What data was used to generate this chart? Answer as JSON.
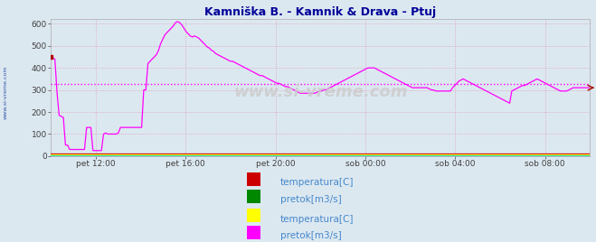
{
  "title": "Kamniška B. - Kamnik & Drava - Ptuj",
  "title_color": "#000099",
  "bg_color": "#dce8f0",
  "legend_bg_color": "#e8eef4",
  "ylim": [
    0,
    620
  ],
  "yticks": [
    0,
    100,
    200,
    300,
    400,
    500,
    600
  ],
  "grid_color": "#dd99bb",
  "avg_line_y": 325,
  "avg_line_color": "#ff00ff",
  "xtick_labels": [
    "pet 12:00",
    "pet 16:00",
    "pet 20:00",
    "sob 00:00",
    "sob 04:00",
    "sob 08:00"
  ],
  "xtick_fracs": [
    0.0833,
    0.25,
    0.4167,
    0.5833,
    0.75,
    0.9167
  ],
  "watermark": "www.si-vreme.com",
  "legend1_colors": [
    "#cc0000",
    "#008800"
  ],
  "legend1_labels": [
    "temperatura[C]",
    "pretok[m3/s]"
  ],
  "legend2_colors": [
    "#ffff00",
    "#ff00ff"
  ],
  "legend2_labels": [
    "temperatura[C]",
    "pretok[m3/s]"
  ],
  "legend_text_color": "#4488cc",
  "side_label": "www.si-vreme.com",
  "side_label_color": "#3355aa",
  "kamnik_temp_val": 12,
  "kamnik_flow_val": 5,
  "ptuj_temp_val": 8,
  "cyan_val": 3,
  "ptuj_flow": [
    450,
    445,
    440,
    290,
    185,
    180,
    175,
    50,
    50,
    30,
    30,
    30,
    30,
    30,
    30,
    30,
    30,
    130,
    130,
    130,
    25,
    25,
    25,
    25,
    25,
    100,
    105,
    100,
    100,
    100,
    100,
    100,
    105,
    130,
    130,
    130,
    130,
    130,
    130,
    130,
    130,
    130,
    130,
    130,
    300,
    300,
    420,
    430,
    440,
    450,
    460,
    480,
    510,
    530,
    550,
    560,
    570,
    580,
    590,
    605,
    610,
    605,
    595,
    580,
    565,
    555,
    545,
    540,
    545,
    540,
    535,
    525,
    515,
    505,
    495,
    490,
    480,
    475,
    465,
    460,
    455,
    450,
    445,
    440,
    435,
    430,
    430,
    425,
    420,
    415,
    410,
    405,
    400,
    395,
    390,
    385,
    380,
    375,
    370,
    365,
    365,
    360,
    355,
    350,
    345,
    340,
    335,
    330,
    330,
    325,
    320,
    315,
    315,
    310,
    305,
    300,
    295,
    290,
    285,
    285,
    285,
    285,
    285,
    285,
    285,
    285,
    290,
    295,
    295,
    300,
    300,
    305,
    310,
    315,
    320,
    325,
    330,
    335,
    340,
    345,
    350,
    355,
    360,
    365,
    370,
    375,
    380,
    385,
    390,
    395,
    400,
    400,
    400,
    400,
    395,
    390,
    385,
    380,
    375,
    370,
    365,
    360,
    355,
    350,
    345,
    340,
    335,
    330,
    325,
    320,
    315,
    310,
    310,
    310,
    310,
    310,
    310,
    310,
    310,
    305,
    300,
    300,
    295,
    295,
    295,
    295,
    295,
    295,
    295,
    295,
    310,
    320,
    330,
    340,
    345,
    350,
    345,
    340,
    335,
    330,
    325,
    320,
    315,
    310,
    305,
    300,
    295,
    290,
    285,
    280,
    275,
    270,
    265,
    260,
    255,
    250,
    245,
    240,
    295,
    300,
    305,
    310,
    315,
    320,
    320,
    325,
    330,
    335,
    340,
    345,
    350,
    345,
    340,
    335,
    330,
    325,
    320,
    315,
    310,
    305,
    300,
    295,
    295,
    295,
    295,
    300,
    305,
    310,
    310,
    310,
    310,
    310,
    310,
    310,
    310,
    310
  ]
}
